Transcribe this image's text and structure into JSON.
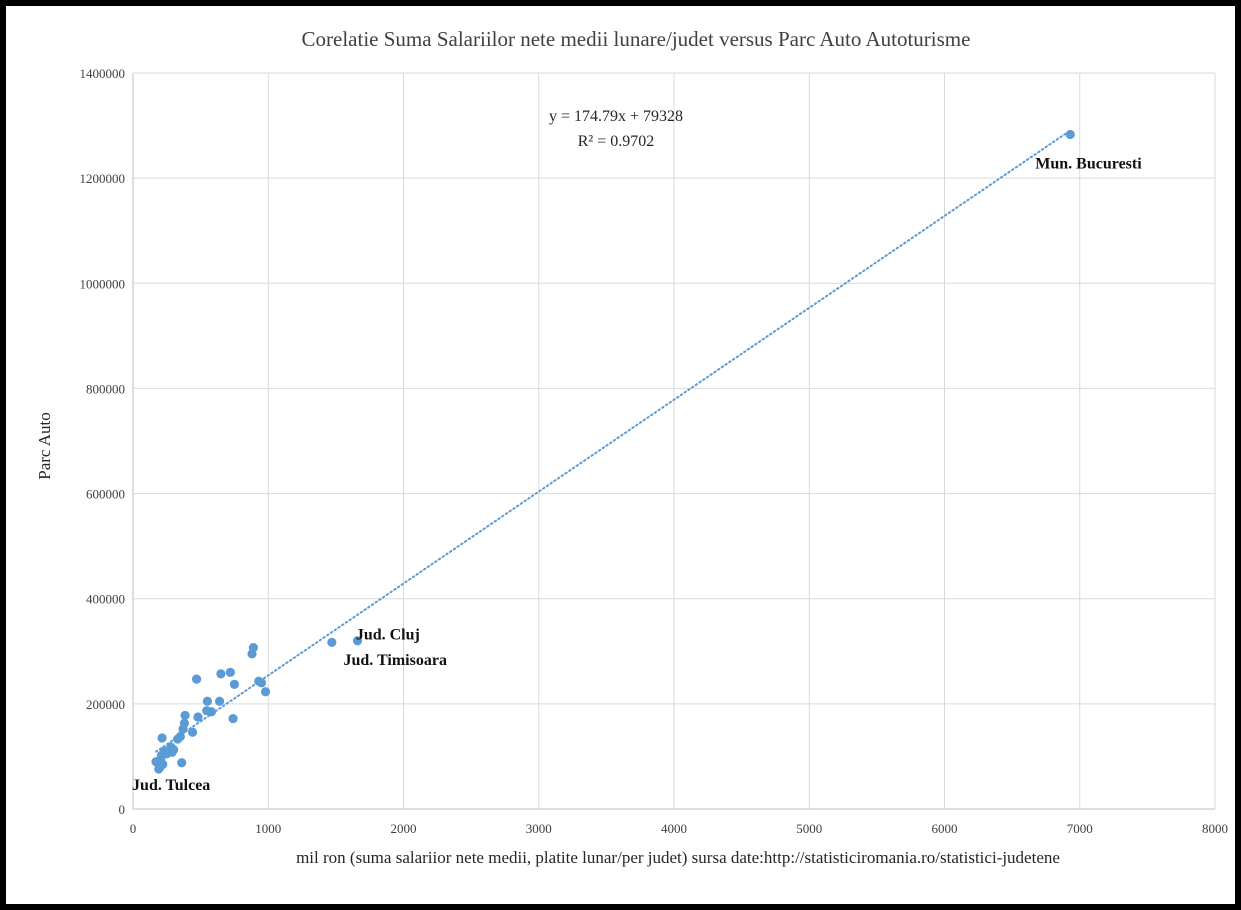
{
  "chart_data": {
    "type": "scatter",
    "title": "Corelatie Suma Salariilor nete medii lunare/judet versus Parc Auto Autoturisme",
    "xlabel": "mil ron (suma salariior nete medii, platite lunar/per judet) sursa date:http://statisticiromania.ro/statistici-judetene",
    "ylabel": "Parc Auto",
    "xlim": [
      0,
      8000
    ],
    "ylim": [
      0,
      1400000
    ],
    "xticks": [
      "0",
      "1000",
      "2000",
      "3000",
      "4000",
      "5000",
      "6000",
      "7000",
      "8000"
    ],
    "yticks": [
      "0",
      "200000",
      "400000",
      "600000",
      "800000",
      "1000000",
      "1200000",
      "1400000"
    ],
    "grid": true,
    "colors": {
      "points": "#5b9bd5",
      "trendline": "#5b9bd5"
    },
    "trendline": {
      "type": "linear",
      "slope": 174.79,
      "intercept": 79328,
      "equation": "y = 174.79x + 79328",
      "r_squared": "R² = 0.9702"
    },
    "series": [
      {
        "points": [
          [
            170,
            90000
          ],
          [
            190,
            76000
          ],
          [
            200,
            80000
          ],
          [
            205,
            95000
          ],
          [
            210,
            102000
          ],
          [
            215,
            135000
          ],
          [
            220,
            85000
          ],
          [
            230,
            110000
          ],
          [
            250,
            105000
          ],
          [
            265,
            112000
          ],
          [
            280,
            118000
          ],
          [
            290,
            108000
          ],
          [
            300,
            113000
          ],
          [
            330,
            133000
          ],
          [
            350,
            138000
          ],
          [
            360,
            88000
          ],
          [
            370,
            152000
          ],
          [
            380,
            163000
          ],
          [
            385,
            178000
          ],
          [
            440,
            146000
          ],
          [
            470,
            247000
          ],
          [
            480,
            175000
          ],
          [
            545,
            187000
          ],
          [
            550,
            205000
          ],
          [
            580,
            185000
          ],
          [
            640,
            205000
          ],
          [
            650,
            257000
          ],
          [
            720,
            260000
          ],
          [
            740,
            172000
          ],
          [
            750,
            237000
          ],
          [
            880,
            295000
          ],
          [
            890,
            307000
          ],
          [
            930,
            243000
          ],
          [
            950,
            240000
          ],
          [
            980,
            223000
          ],
          [
            1470,
            317000
          ],
          [
            1660,
            320000
          ],
          [
            6930,
            1283000
          ]
        ]
      }
    ],
    "annotations": [
      {
        "text": "Jud. Tulcea",
        "x": 200,
        "y": 78000
      },
      {
        "text": "Jud. Cluj",
        "x": 1470,
        "y": 317000
      },
      {
        "text": "Jud. Timisoara",
        "x": 1660,
        "y": 320000
      },
      {
        "text": "Mun. Bucuresti",
        "x": 6930,
        "y": 1283000
      }
    ]
  }
}
